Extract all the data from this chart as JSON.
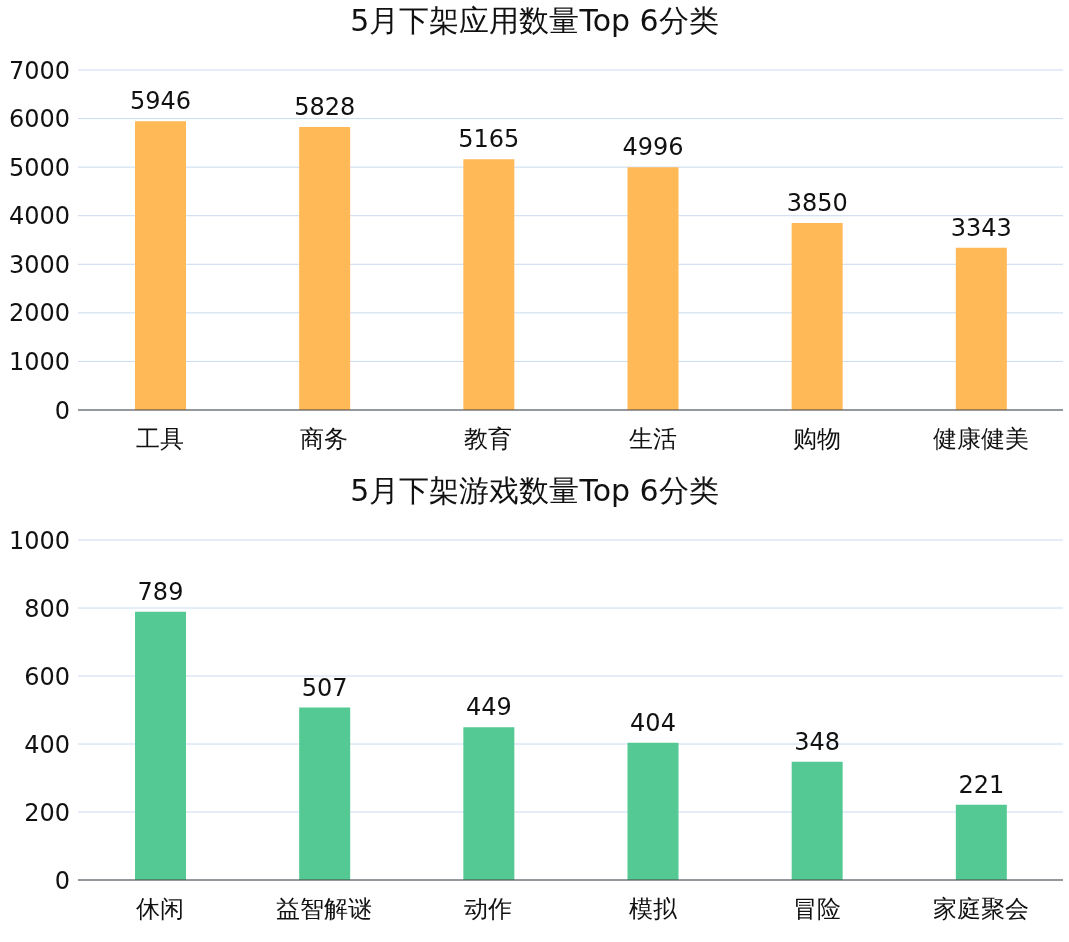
{
  "chart_data": [
    {
      "type": "bar",
      "title": "5月下架应用数量Top 6分类",
      "categories": [
        "工具",
        "商务",
        "教育",
        "生活",
        "购物",
        "健康健美"
      ],
      "values": [
        5946,
        5828,
        5165,
        4996,
        3850,
        3343
      ],
      "color": "#ffb957",
      "ylim": [
        0,
        7000
      ],
      "yticks": [
        0,
        1000,
        2000,
        3000,
        4000,
        5000,
        6000,
        7000
      ],
      "grid": "y",
      "data_labels": true
    },
    {
      "type": "bar",
      "title": "5月下架游戏数量Top 6分类",
      "categories": [
        "休闲",
        "益智解谜",
        "动作",
        "模拟",
        "冒险",
        "家庭聚会"
      ],
      "values": [
        789,
        507,
        449,
        404,
        348,
        221
      ],
      "color": "#55c993",
      "ylim": [
        0,
        1000
      ],
      "yticks": [
        0,
        200,
        400,
        600,
        800,
        1000
      ],
      "grid": "y",
      "data_labels": true
    }
  ]
}
